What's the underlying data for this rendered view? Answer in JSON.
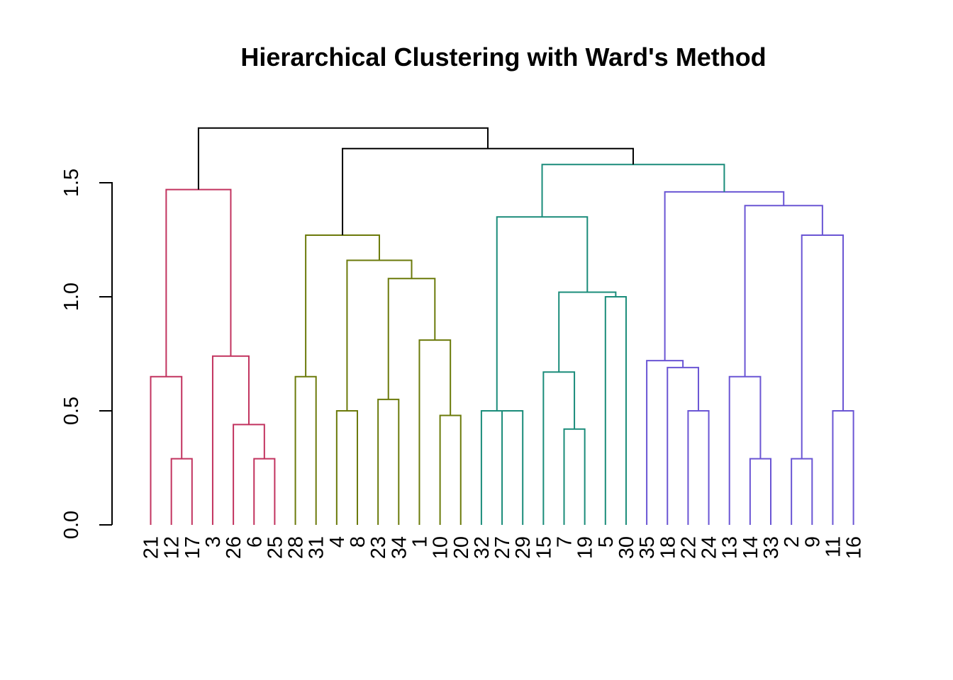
{
  "chart_data": {
    "type": "dendrogram",
    "title": "Hierarchical Clustering with Ward's Method",
    "xlabel": "",
    "ylabel": "",
    "ylim": [
      0,
      1.7
    ],
    "yticks": [
      {
        "value": 0.0,
        "label": "0.0"
      },
      {
        "value": 0.5,
        "label": "0.5"
      },
      {
        "value": 1.0,
        "label": "1.0"
      },
      {
        "value": 1.5,
        "label": "1.5"
      }
    ],
    "grid": false,
    "leaf_order": [
      "21",
      "12",
      "17",
      "3",
      "26",
      "6",
      "25",
      "28",
      "31",
      "4",
      "8",
      "23",
      "34",
      "1",
      "10",
      "20",
      "32",
      "27",
      "29",
      "15",
      "7",
      "19",
      "5",
      "30",
      "35",
      "18",
      "22",
      "24",
      "13",
      "14",
      "33",
      "2",
      "9",
      "11",
      "16"
    ],
    "cluster_colors": {
      "red": "#C2335F",
      "olive": "#6B7A0A",
      "teal": "#1A8C7A",
      "purple": "#6A55D4",
      "root": "#000000"
    },
    "merges": [
      {
        "id": "r1",
        "children": [
          "12",
          "17"
        ],
        "height": 0.29,
        "color": "red"
      },
      {
        "id": "r2",
        "children": [
          "21",
          "r1"
        ],
        "height": 0.65,
        "color": "red"
      },
      {
        "id": "r3",
        "children": [
          "6",
          "25"
        ],
        "height": 0.29,
        "color": "red"
      },
      {
        "id": "r4",
        "children": [
          "26",
          "r3"
        ],
        "height": 0.44,
        "color": "red"
      },
      {
        "id": "r5",
        "children": [
          "3",
          "r4"
        ],
        "height": 0.74,
        "color": "red"
      },
      {
        "id": "r6",
        "children": [
          "r2",
          "r5"
        ],
        "height": 1.47,
        "color": "red"
      },
      {
        "id": "o1",
        "children": [
          "28",
          "31"
        ],
        "height": 0.65,
        "color": "olive"
      },
      {
        "id": "o2",
        "children": [
          "4",
          "8"
        ],
        "height": 0.5,
        "color": "olive"
      },
      {
        "id": "o3",
        "children": [
          "23",
          "34"
        ],
        "height": 0.55,
        "color": "olive"
      },
      {
        "id": "o4",
        "children": [
          "10",
          "20"
        ],
        "height": 0.48,
        "color": "olive"
      },
      {
        "id": "o5",
        "children": [
          "1",
          "o4"
        ],
        "height": 0.81,
        "color": "olive"
      },
      {
        "id": "o6",
        "children": [
          "o3",
          "o5"
        ],
        "height": 1.08,
        "color": "olive"
      },
      {
        "id": "o7",
        "children": [
          "o2",
          "o6"
        ],
        "height": 1.16,
        "color": "olive"
      },
      {
        "id": "o8",
        "children": [
          "o1",
          "o7"
        ],
        "height": 1.27,
        "color": "olive"
      },
      {
        "id": "t1",
        "children": [
          "27",
          "29"
        ],
        "height": 0.5,
        "color": "teal"
      },
      {
        "id": "t2",
        "children": [
          "32",
          "t1"
        ],
        "height": 0.5,
        "color": "teal"
      },
      {
        "id": "t3",
        "children": [
          "7",
          "19"
        ],
        "height": 0.42,
        "color": "teal"
      },
      {
        "id": "t4",
        "children": [
          "15",
          "t3"
        ],
        "height": 0.67,
        "color": "teal"
      },
      {
        "id": "t5",
        "children": [
          "5",
          "30"
        ],
        "height": 1.0,
        "color": "teal"
      },
      {
        "id": "t6",
        "children": [
          "t4",
          "t5"
        ],
        "height": 1.02,
        "color": "teal"
      },
      {
        "id": "t7",
        "children": [
          "t2",
          "t6"
        ],
        "height": 1.35,
        "color": "teal"
      },
      {
        "id": "p1",
        "children": [
          "22",
          "24"
        ],
        "height": 0.5,
        "color": "purple"
      },
      {
        "id": "p2",
        "children": [
          "18",
          "p1"
        ],
        "height": 0.69,
        "color": "purple"
      },
      {
        "id": "p3",
        "children": [
          "35",
          "p2"
        ],
        "height": 0.72,
        "color": "purple"
      },
      {
        "id": "p4",
        "children": [
          "14",
          "33"
        ],
        "height": 0.29,
        "color": "purple"
      },
      {
        "id": "p5",
        "children": [
          "13",
          "p4"
        ],
        "height": 0.65,
        "color": "purple"
      },
      {
        "id": "p6",
        "children": [
          "2",
          "9"
        ],
        "height": 0.29,
        "color": "purple"
      },
      {
        "id": "p7",
        "children": [
          "11",
          "16"
        ],
        "height": 0.5,
        "color": "purple"
      },
      {
        "id": "p8",
        "children": [
          "p6",
          "p7"
        ],
        "height": 1.27,
        "color": "purple"
      },
      {
        "id": "p9",
        "children": [
          "p5",
          "p8"
        ],
        "height": 1.4,
        "color": "purple"
      },
      {
        "id": "p10",
        "children": [
          "p3",
          "p9"
        ],
        "height": 1.46,
        "color": "purple"
      },
      {
        "id": "x1",
        "children": [
          "t7",
          "p10"
        ],
        "height": 1.58,
        "color": "teal"
      },
      {
        "id": "x2",
        "children": [
          "o8",
          "x1"
        ],
        "height": 1.65,
        "color": "root"
      },
      {
        "id": "x3",
        "children": [
          "r6",
          "x2"
        ],
        "height": 1.74,
        "color": "root"
      }
    ]
  }
}
